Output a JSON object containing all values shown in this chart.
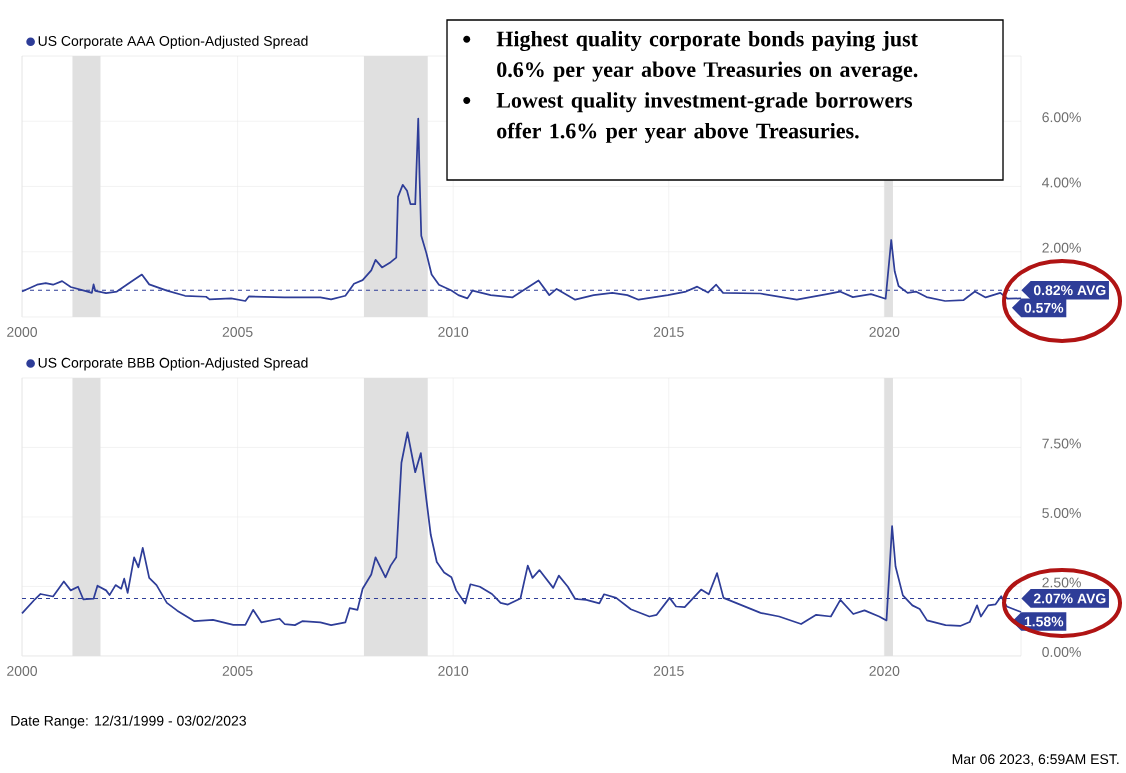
{
  "chart_data": [
    {
      "type": "line",
      "x": [
        2000.0,
        2000.35,
        2000.55,
        2000.72,
        2000.93,
        2001.13,
        2001.46,
        2001.62,
        2001.66,
        2001.7,
        2001.95,
        2002.2,
        2002.53,
        2002.78,
        2002.95,
        2003.36,
        2003.78,
        2004.27,
        2004.35,
        2004.85,
        2005.18,
        2005.26,
        2006.09,
        2006.92,
        2007.17,
        2007.5,
        2007.7,
        2007.9,
        2008.1,
        2008.2,
        2008.35,
        2008.55,
        2008.68,
        2008.72,
        2008.83,
        2008.93,
        2009.01,
        2009.12,
        2009.19,
        2009.22,
        2009.26,
        2009.38,
        2009.5,
        2009.67,
        2009.96,
        2010.12,
        2010.33,
        2010.45,
        2010.87,
        2011.37,
        2011.62,
        2011.98,
        2012.23,
        2012.4,
        2012.83,
        2013.26,
        2013.69,
        2014.04,
        2014.3,
        2014.98,
        2015.4,
        2015.66,
        2015.91,
        2016.1,
        2016.26,
        2017.12,
        2017.97,
        2018.67,
        2018.97,
        2019.27,
        2019.69,
        2020.03,
        2020.16,
        2020.24,
        2020.33,
        2020.54,
        2020.73,
        2020.98,
        2021.41,
        2021.84,
        2022.1,
        2022.35,
        2022.69,
        2022.86,
        2023.17
      ],
      "series": [
        {
          "name": "US Corporate AAA Option-Adjusted Spread",
          "color": "#2e3d98",
          "values": [
            0.78,
            0.99,
            1.04,
            0.99,
            1.1,
            0.92,
            0.8,
            0.74,
            1.0,
            0.8,
            0.73,
            0.78,
            1.08,
            1.3,
            1.0,
            0.81,
            0.65,
            0.62,
            0.54,
            0.57,
            0.49,
            0.63,
            0.6,
            0.6,
            0.54,
            0.65,
            1.02,
            1.13,
            1.43,
            1.75,
            1.52,
            1.68,
            1.82,
            3.68,
            4.05,
            3.87,
            3.46,
            3.46,
            6.08,
            4.33,
            2.49,
            1.95,
            1.3,
            0.99,
            0.81,
            0.67,
            0.57,
            0.81,
            0.67,
            0.6,
            0.81,
            1.12,
            0.67,
            0.86,
            0.53,
            0.67,
            0.74,
            0.67,
            0.53,
            0.67,
            0.78,
            0.93,
            0.75,
            0.99,
            0.74,
            0.72,
            0.53,
            0.7,
            0.78,
            0.61,
            0.7,
            0.56,
            2.36,
            1.4,
            0.95,
            0.74,
            0.78,
            0.61,
            0.49,
            0.52,
            0.78,
            0.6,
            0.74,
            0.56,
            0.57
          ]
        }
      ],
      "xlim": [
        2000.0,
        2023.17
      ],
      "xticks": [
        2000,
        2005,
        2010,
        2015,
        2020
      ],
      "ylim": [
        0,
        8
      ],
      "yticks": [
        {
          "value": 2,
          "label": "2.00%"
        },
        {
          "value": 4,
          "label": "4.00%"
        },
        {
          "value": 6,
          "label": "6.00%"
        }
      ],
      "grid": true,
      "legend": "top left",
      "line_style": "solid",
      "bands": [
        {
          "axis": "x",
          "from": 2001.17,
          "to": 2001.82,
          "color": "#e0e0e0"
        },
        {
          "axis": "x",
          "from": 2007.93,
          "to": 2009.41,
          "color": "#e0e0e0"
        },
        {
          "axis": "x",
          "from": 2020.0,
          "to": 2020.2,
          "color": "#e0e0e0"
        }
      ],
      "ref_lines": [
        {
          "axis": "y",
          "value": 0.82,
          "label": "0.82% AVG",
          "color": "#2e3d98",
          "line_style": "dashed"
        }
      ],
      "annotations": [
        "Highest quality corporate bonds paying just 0.6% per year above Treasuries on average.",
        "Lowest quality investment-grade borrowers offer 1.6% per year above Treasuries.",
        {
          "text": "0.57%",
          "x": 2023.17,
          "y": 0.57
        }
      ]
    },
    {
      "type": "line",
      "x": [
        2000.0,
        2000.3,
        2000.43,
        2000.72,
        2000.97,
        2001.13,
        2001.3,
        2001.42,
        2001.66,
        2001.75,
        2001.95,
        2002.03,
        2002.17,
        2002.3,
        2002.37,
        2002.45,
        2002.6,
        2002.7,
        2002.8,
        2002.95,
        2003.12,
        2003.36,
        2003.6,
        2004.0,
        2004.43,
        2004.9,
        2005.18,
        2005.36,
        2005.55,
        2005.97,
        2006.09,
        2006.33,
        2006.5,
        2006.92,
        2007.17,
        2007.5,
        2007.6,
        2007.78,
        2007.9,
        2008.1,
        2008.2,
        2008.43,
        2008.55,
        2008.68,
        2008.8,
        2008.94,
        2009.12,
        2009.25,
        2009.38,
        2009.48,
        2009.62,
        2009.79,
        2009.96,
        2010.07,
        2010.28,
        2010.4,
        2010.62,
        2010.9,
        2011.1,
        2011.27,
        2011.56,
        2011.73,
        2011.84,
        2012.0,
        2012.32,
        2012.45,
        2012.66,
        2012.83,
        2013.09,
        2013.39,
        2013.5,
        2013.78,
        2014.12,
        2014.55,
        2014.72,
        2015.02,
        2015.17,
        2015.37,
        2015.75,
        2015.93,
        2016.12,
        2016.27,
        2016.7,
        2017.13,
        2017.56,
        2018.07,
        2018.42,
        2018.76,
        2018.98,
        2019.28,
        2019.54,
        2019.88,
        2020.05,
        2020.18,
        2020.26,
        2020.43,
        2020.65,
        2020.82,
        2020.99,
        2021.42,
        2021.76,
        2021.98,
        2022.15,
        2022.24,
        2022.41,
        2022.58,
        2022.71,
        2022.84,
        2023.17
      ],
      "series": [
        {
          "name": "US Corporate BBB Option-Adjusted Spread",
          "color": "#2e3d98",
          "values": [
            1.53,
            2.04,
            2.23,
            2.14,
            2.68,
            2.36,
            2.49,
            2.04,
            2.06,
            2.53,
            2.36,
            2.19,
            2.55,
            2.42,
            2.78,
            2.27,
            3.55,
            3.19,
            3.89,
            2.81,
            2.55,
            1.91,
            1.63,
            1.25,
            1.3,
            1.12,
            1.12,
            1.66,
            1.21,
            1.34,
            1.15,
            1.11,
            1.25,
            1.21,
            1.11,
            1.21,
            1.72,
            1.66,
            2.42,
            2.93,
            3.55,
            2.83,
            3.25,
            3.55,
            6.95,
            8.04,
            6.61,
            7.3,
            5.61,
            4.36,
            3.38,
            3.0,
            2.83,
            2.36,
            1.89,
            2.58,
            2.49,
            2.23,
            1.91,
            1.85,
            2.07,
            3.25,
            2.81,
            3.09,
            2.45,
            2.89,
            2.49,
            2.05,
            2.02,
            1.89,
            2.22,
            2.09,
            1.68,
            1.42,
            1.48,
            2.09,
            1.78,
            1.76,
            2.39,
            2.22,
            2.98,
            2.09,
            1.82,
            1.55,
            1.42,
            1.15,
            1.48,
            1.42,
            2.02,
            1.51,
            1.64,
            1.42,
            1.28,
            4.67,
            3.22,
            2.18,
            1.82,
            1.69,
            1.28,
            1.11,
            1.08,
            1.22,
            1.82,
            1.42,
            1.82,
            1.86,
            2.15,
            1.78,
            1.58
          ]
        }
      ],
      "xlim": [
        2000.0,
        2023.17
      ],
      "xticks": [
        2000,
        2005,
        2010,
        2015,
        2020
      ],
      "ylim": [
        0,
        10
      ],
      "yticks": [
        {
          "value": 0,
          "label": "0.00%"
        },
        {
          "value": 2.5,
          "label": "2.50%"
        },
        {
          "value": 5,
          "label": "5.00%"
        },
        {
          "value": 7.5,
          "label": "7.50%"
        }
      ],
      "grid": true,
      "legend": "top left",
      "line_style": "solid",
      "bands": [
        {
          "axis": "x",
          "from": 2001.17,
          "to": 2001.82,
          "color": "#e0e0e0"
        },
        {
          "axis": "x",
          "from": 2007.93,
          "to": 2009.41,
          "color": "#e0e0e0"
        },
        {
          "axis": "x",
          "from": 2020.0,
          "to": 2020.2,
          "color": "#e0e0e0"
        }
      ],
      "ref_lines": [
        {
          "axis": "y",
          "value": 2.07,
          "label": "2.07% AVG",
          "color": "#2e3d98",
          "line_style": "dashed"
        }
      ],
      "annotations": [
        "Date Range: 12/31/1999 - 03/02/2023",
        "Mar 06 2023, 6:59AM EST.",
        {
          "text": "1.58%",
          "x": 2023.17,
          "y": 1.58
        }
      ]
    }
  ]
}
